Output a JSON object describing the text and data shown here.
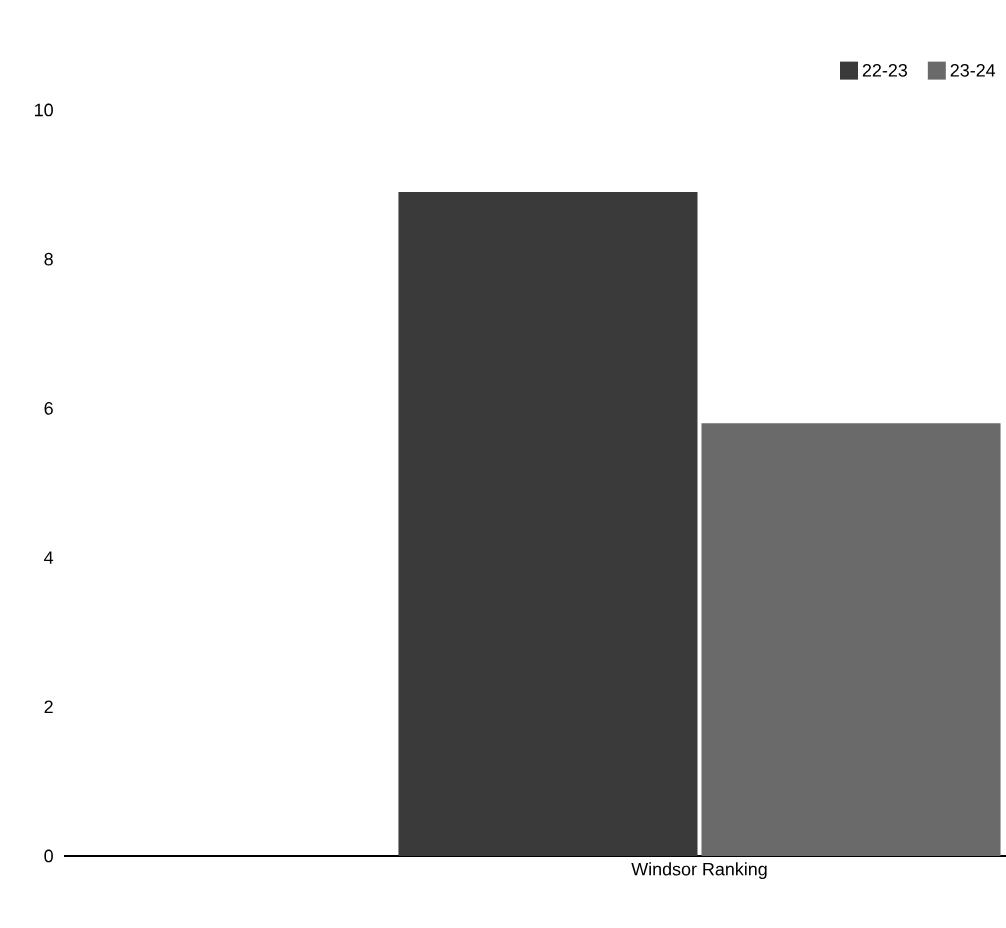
{
  "chart_data": {
    "type": "bar",
    "categories": [
      "Windsor Ranking"
    ],
    "series": [
      {
        "name": "22-23",
        "color": "#3a3a3a",
        "values": [
          8.9
        ]
      },
      {
        "name": "23-24",
        "color": "#6a6a6a",
        "values": [
          5.8
        ]
      }
    ],
    "ylim": [
      0,
      10
    ],
    "yticks": [
      0,
      2,
      4,
      6,
      8,
      10
    ],
    "grid": false,
    "legend": "top right"
  }
}
